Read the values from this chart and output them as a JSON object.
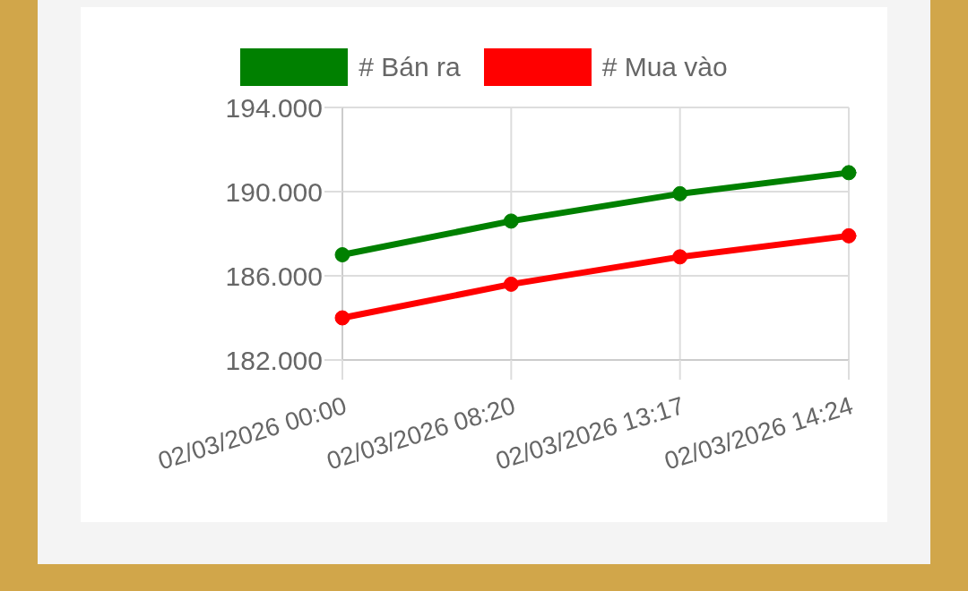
{
  "chart_data": {
    "type": "line",
    "categories": [
      "02/03/2026 00:00",
      "02/03/2026 08:20",
      "02/03/2026 13:17",
      "02/03/2026 14:24"
    ],
    "series": [
      {
        "name": "# Bán ra",
        "color": "#008000",
        "values": [
          187000,
          188600,
          189900,
          190900
        ]
      },
      {
        "name": "# Mua vào",
        "color": "#ff0000",
        "values": [
          184000,
          185600,
          186900,
          187900
        ]
      }
    ],
    "ylim": [
      182000,
      194000
    ],
    "yticks": [
      {
        "value": 182000,
        "label": "182.000"
      },
      {
        "value": 186000,
        "label": "186.000"
      },
      {
        "value": 190000,
        "label": "190.000"
      },
      {
        "value": 194000,
        "label": "194.000"
      }
    ],
    "grid": true,
    "legend": "top",
    "marker": "circle",
    "line_style": "solid"
  }
}
